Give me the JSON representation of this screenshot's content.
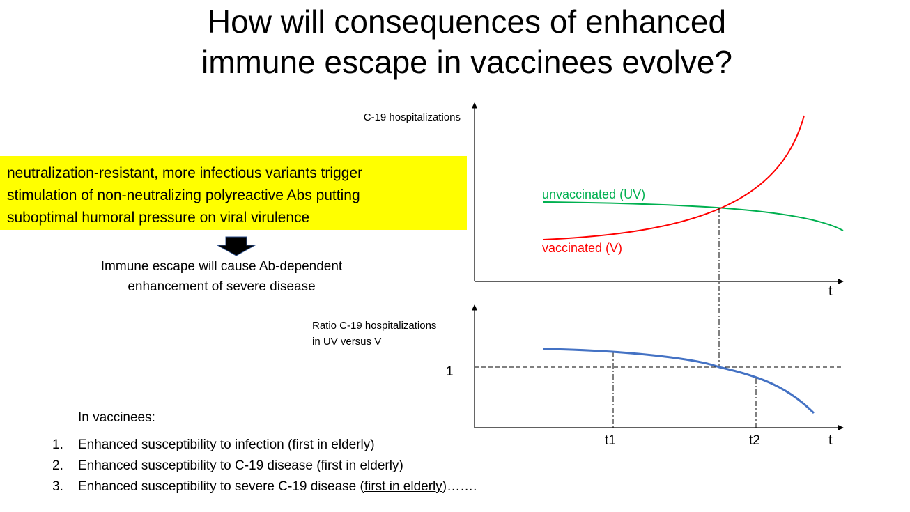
{
  "title": {
    "line1": "How will consequences of enhanced",
    "line2": "immune escape in vaccinees evolve?"
  },
  "highlight_box": {
    "line1": "neutralization-resistant, more infectious variants trigger",
    "line2": "stimulation of non-neutralizing polyreactive Abs putting",
    "line3": "suboptimal humoral pressure on viral virulence",
    "background": "#ffff00"
  },
  "arrow": {
    "icon": "down-arrow-icon",
    "color": "#000000"
  },
  "conclusion": {
    "line1": "Immune escape will cause Ab-dependent",
    "line2": "enhancement of severe disease"
  },
  "vaccinees": {
    "heading": "In vaccinees:",
    "items": [
      {
        "number": "1.",
        "text": "Enhanced susceptibility to infection (first in elderly)"
      },
      {
        "number": "2.",
        "text": "Enhanced susceptibility to C-19 disease (first in elderly)"
      },
      {
        "number": "3.",
        "text_before": "Enhanced susceptibility to severe C-19 disease (",
        "text_underlined": "first in elderly",
        "text_after": ")……."
      }
    ]
  },
  "top_plot": {
    "y_label": "C-19 hospitalizations",
    "x_label": "t",
    "curves": [
      {
        "label": "unvaccinated (UV)",
        "color": "#00b050"
      },
      {
        "label": "vaccinated (V)",
        "color": "#ff0000"
      }
    ]
  },
  "bottom_plot": {
    "y_label_line1": "Ratio C-19 hospitalizations",
    "y_label_line2": "in UV versus V",
    "reference_value": "1",
    "x_label": "t",
    "time_marks": [
      "t1",
      "t2"
    ],
    "curve_color": "#4472c4"
  }
}
